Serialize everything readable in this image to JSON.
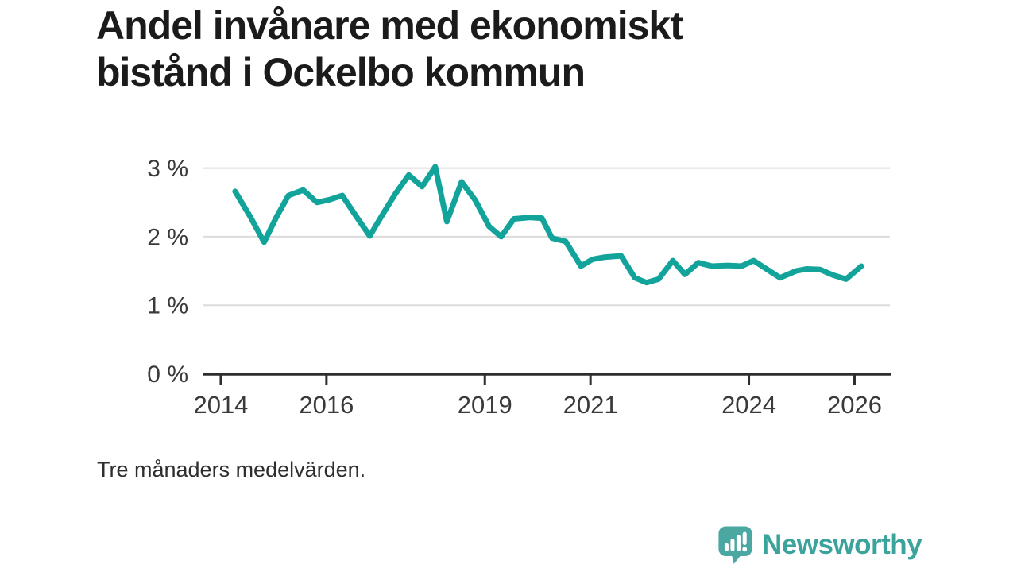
{
  "title": {
    "line1": "Andel invånare med ekonomiskt",
    "line2": "bistånd i Ockelbo kommun",
    "full": "Andel invånare med ekonomiskt bistånd i Ockelbo kommun"
  },
  "footnote": "Tre månaders medelvärden.",
  "branding": {
    "name": "Newsworthy"
  },
  "colors": {
    "background": "#ffffff",
    "title_text": "#1b1b1b",
    "axis_text": "#3a3a3a",
    "axis": "#2e2e2e",
    "grid": "#dcdcdc",
    "line": "#12a39a",
    "logo_teal": "#4aa7a2",
    "logo_text_teal": "#3aa39b",
    "logo_glyph": "#ffffff"
  },
  "chart_data": {
    "type": "line",
    "title": "Andel invånare med ekonomiskt bistånd i Ockelbo kommun",
    "note": "Tre månaders medelvärden.",
    "xlabel": "",
    "ylabel": "",
    "grid": "horizontal",
    "legend": "none",
    "x_axis": {
      "unit": "year",
      "min": 2013.7,
      "max": 2026.7,
      "ticks": [
        {
          "value": 2014,
          "label": "2014"
        },
        {
          "value": 2016,
          "label": "2016"
        },
        {
          "value": 2019,
          "label": "2019"
        },
        {
          "value": 2021,
          "label": "2021"
        },
        {
          "value": 2024,
          "label": "2024"
        },
        {
          "value": 2026,
          "label": "2026"
        }
      ]
    },
    "y_axis": {
      "unit": "%",
      "min": 0,
      "max": 3.2,
      "ticks": [
        {
          "value": 0,
          "label": "0 %"
        },
        {
          "value": 1,
          "label": "1 %"
        },
        {
          "value": 2,
          "label": "2 %"
        },
        {
          "value": 3,
          "label": "3 %"
        }
      ]
    },
    "series": [
      {
        "name": "Andel invånare med ekonomiskt bistånd",
        "color": "#12a39a",
        "points": [
          [
            2014.27,
            2.66
          ],
          [
            2014.55,
            2.3
          ],
          [
            2014.82,
            1.92
          ],
          [
            2015.05,
            2.28
          ],
          [
            2015.28,
            2.6
          ],
          [
            2015.56,
            2.68
          ],
          [
            2015.82,
            2.5
          ],
          [
            2016.06,
            2.54
          ],
          [
            2016.3,
            2.6
          ],
          [
            2016.56,
            2.3
          ],
          [
            2016.82,
            2.01
          ],
          [
            2017.06,
            2.32
          ],
          [
            2017.31,
            2.63
          ],
          [
            2017.56,
            2.9
          ],
          [
            2017.81,
            2.73
          ],
          [
            2018.06,
            3.02
          ],
          [
            2018.28,
            2.22
          ],
          [
            2018.56,
            2.8
          ],
          [
            2018.82,
            2.53
          ],
          [
            2019.08,
            2.15
          ],
          [
            2019.31,
            2.0
          ],
          [
            2019.55,
            2.26
          ],
          [
            2019.86,
            2.28
          ],
          [
            2020.08,
            2.27
          ],
          [
            2020.27,
            1.98
          ],
          [
            2020.53,
            1.93
          ],
          [
            2020.82,
            1.57
          ],
          [
            2021.04,
            1.67
          ],
          [
            2021.26,
            1.7
          ],
          [
            2021.58,
            1.72
          ],
          [
            2021.84,
            1.4
          ],
          [
            2022.06,
            1.33
          ],
          [
            2022.29,
            1.38
          ],
          [
            2022.56,
            1.65
          ],
          [
            2022.79,
            1.45
          ],
          [
            2023.04,
            1.62
          ],
          [
            2023.3,
            1.57
          ],
          [
            2023.6,
            1.58
          ],
          [
            2023.86,
            1.57
          ],
          [
            2024.09,
            1.65
          ],
          [
            2024.59,
            1.4
          ],
          [
            2024.89,
            1.5
          ],
          [
            2025.1,
            1.53
          ],
          [
            2025.35,
            1.52
          ],
          [
            2025.59,
            1.44
          ],
          [
            2025.84,
            1.38
          ],
          [
            2026.13,
            1.57
          ]
        ]
      }
    ]
  }
}
